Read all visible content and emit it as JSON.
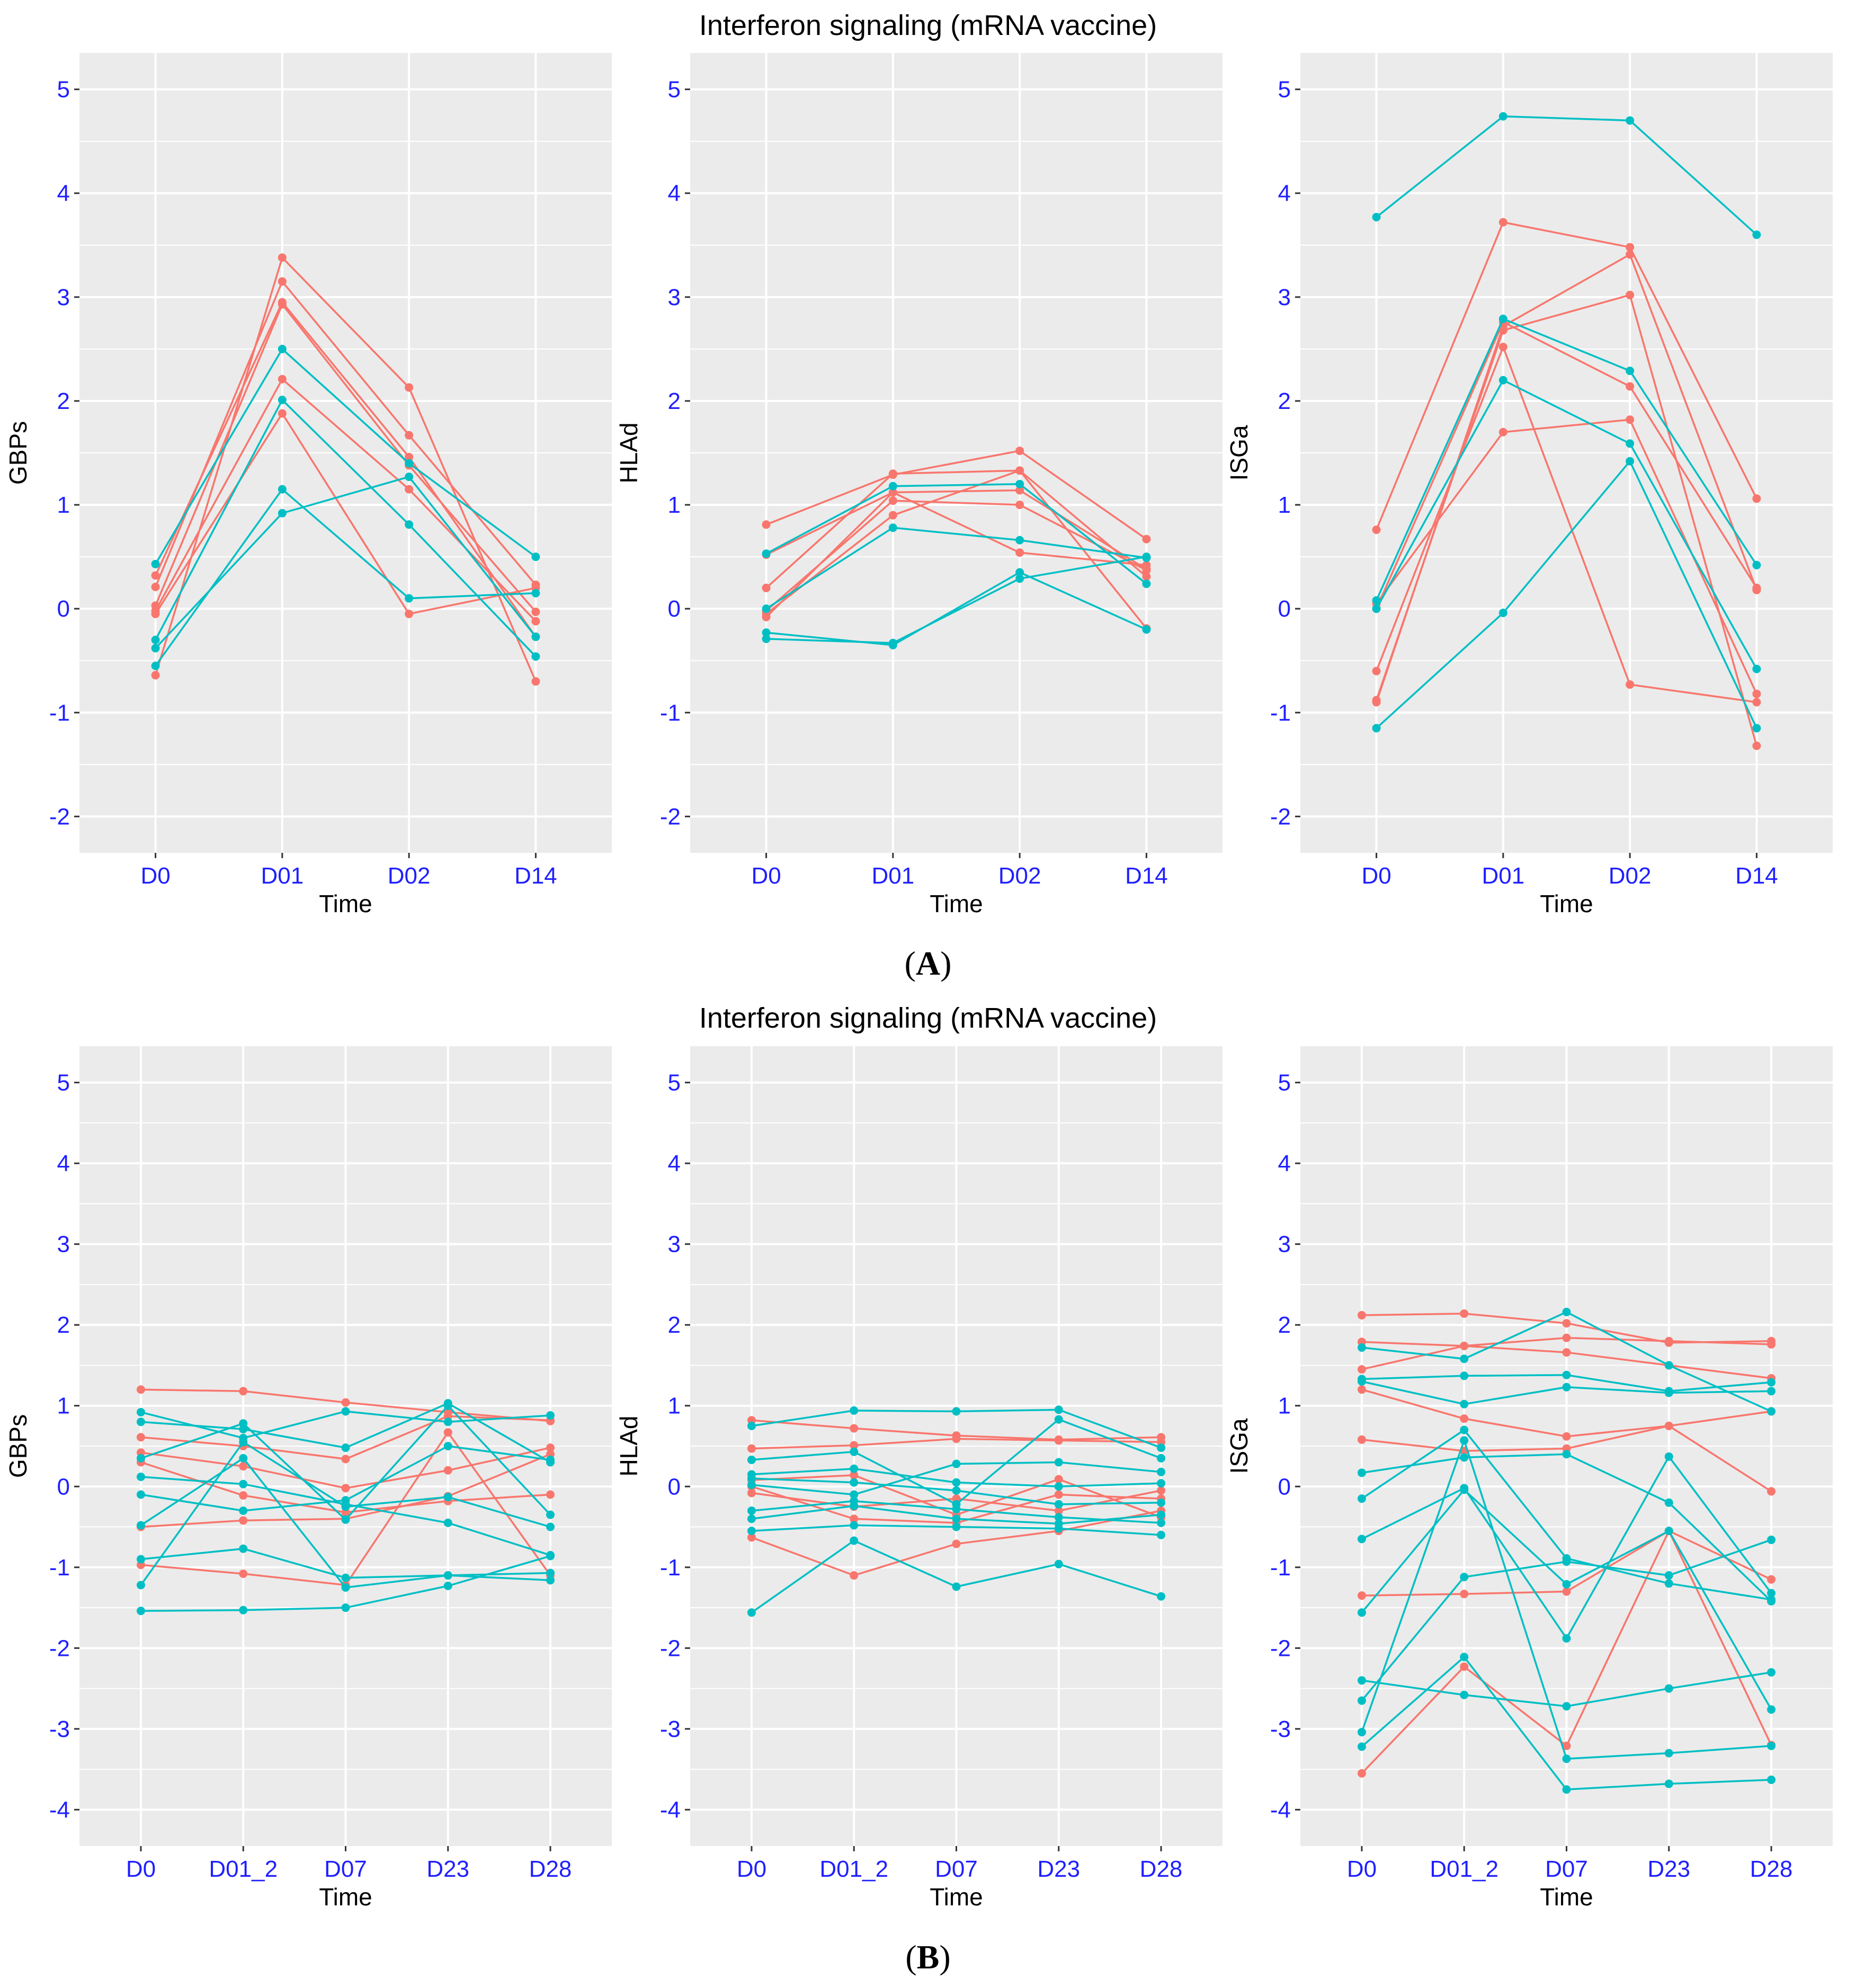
{
  "colors": {
    "group1": "#f8766d",
    "group2": "#00bfc4",
    "tick_label": "#1f1fff"
  },
  "panels": [
    {
      "title": "Interferon signaling (mRNA vaccine)",
      "label_open": "(",
      "label_letter": "A",
      "label_close": ")",
      "chart_data": [
        {
          "type": "line",
          "ylabel": "GBPs",
          "xlabel": "Time",
          "categories": [
            "D0",
            "D01",
            "D02",
            "D14"
          ],
          "ylim": [
            -2.35,
            5.35
          ],
          "yticks": [
            -2,
            -1,
            0,
            1,
            2,
            3,
            4,
            5
          ],
          "series": [
            {
              "group": "group1",
              "values": [
                -0.64,
                3.38,
                2.13,
                -0.7
              ]
            },
            {
              "group": "group1",
              "values": [
                0.21,
                3.15,
                1.67,
                0.23
              ]
            },
            {
              "group": "group1",
              "values": [
                0.32,
                2.95,
                1.46,
                -0.27
              ]
            },
            {
              "group": "group1",
              "values": [
                0.03,
                2.93,
                1.38,
                -0.03
              ]
            },
            {
              "group": "group1",
              "values": [
                -0.02,
                2.21,
                1.15,
                -0.12
              ]
            },
            {
              "group": "group1",
              "values": [
                -0.05,
                1.88,
                -0.05,
                0.2
              ]
            },
            {
              "group": "group2",
              "values": [
                0.43,
                2.5,
                1.4,
                0.5
              ]
            },
            {
              "group": "group2",
              "values": [
                -0.3,
                2.01,
                0.81,
                -0.46
              ]
            },
            {
              "group": "group2",
              "values": [
                -0.55,
                1.15,
                0.1,
                0.15
              ]
            },
            {
              "group": "group2",
              "values": [
                -0.38,
                0.92,
                1.27,
                -0.27
              ]
            }
          ]
        },
        {
          "type": "line",
          "ylabel": "HLAd",
          "xlabel": "Time",
          "categories": [
            "D0",
            "D01",
            "D02",
            "D14"
          ],
          "ylim": [
            -2.35,
            5.35
          ],
          "yticks": [
            -2,
            -1,
            0,
            1,
            2,
            3,
            4,
            5
          ],
          "series": [
            {
              "group": "group1",
              "values": [
                0.81,
                1.29,
                1.52,
                0.67
              ]
            },
            {
              "group": "group1",
              "values": [
                0.2,
                1.3,
                1.33,
                -0.19
              ]
            },
            {
              "group": "group1",
              "values": [
                0.52,
                1.12,
                1.14,
                0.38
              ]
            },
            {
              "group": "group1",
              "values": [
                -0.02,
                1.04,
                1.0,
                0.37
              ]
            },
            {
              "group": "group1",
              "values": [
                -0.05,
                0.9,
                1.33,
                0.31
              ]
            },
            {
              "group": "group1",
              "values": [
                -0.08,
                1.12,
                0.54,
                0.42
              ]
            },
            {
              "group": "group2",
              "values": [
                0.53,
                1.18,
                1.2,
                0.24
              ]
            },
            {
              "group": "group2",
              "values": [
                0.0,
                0.78,
                0.66,
                0.49
              ]
            },
            {
              "group": "group2",
              "values": [
                -0.23,
                -0.35,
                0.35,
                -0.2
              ]
            },
            {
              "group": "group2",
              "values": [
                -0.29,
                -0.33,
                0.29,
                0.5
              ]
            }
          ]
        },
        {
          "type": "line",
          "ylabel": "ISGa",
          "xlabel": "Time",
          "categories": [
            "D0",
            "D01",
            "D02",
            "D14"
          ],
          "ylim": [
            -2.35,
            5.35
          ],
          "yticks": [
            -2,
            -1,
            0,
            1,
            2,
            3,
            4,
            5
          ],
          "series": [
            {
              "group": "group1",
              "values": [
                0.76,
                3.72,
                3.48,
                1.06
              ]
            },
            {
              "group": "group1",
              "values": [
                -0.9,
                2.72,
                3.41,
                0.18
              ]
            },
            {
              "group": "group1",
              "values": [
                -0.6,
                2.52,
                -0.73,
                -0.9
              ]
            },
            {
              "group": "group1",
              "values": [
                -0.88,
                2.68,
                3.02,
                -1.32
              ]
            },
            {
              "group": "group1",
              "values": [
                0.05,
                1.7,
                1.82,
                -0.82
              ]
            },
            {
              "group": "group1",
              "values": [
                0.0,
                2.76,
                2.14,
                0.2
              ]
            },
            {
              "group": "group2",
              "values": [
                3.77,
                4.74,
                4.7,
                3.6
              ]
            },
            {
              "group": "group2",
              "values": [
                0.08,
                2.79,
                2.29,
                0.42
              ]
            },
            {
              "group": "group2",
              "values": [
                0.0,
                2.2,
                1.59,
                -0.58
              ]
            },
            {
              "group": "group2",
              "values": [
                -1.15,
                -0.04,
                1.42,
                -1.15
              ]
            }
          ]
        }
      ]
    },
    {
      "title": "Interferon signaling (mRNA vaccine)",
      "label_open": "(",
      "label_letter": "B",
      "label_close": ")",
      "chart_data": [
        {
          "type": "line",
          "ylabel": "GBPs",
          "xlabel": "Time",
          "categories": [
            "D0",
            "D01_2",
            "D07",
            "D23",
            "D28"
          ],
          "ylim": [
            -4.45,
            5.45
          ],
          "yticks": [
            -4,
            -3,
            -2,
            -1,
            0,
            1,
            2,
            3,
            4,
            5
          ],
          "series": [
            {
              "group": "group1",
              "values": [
                1.2,
                1.18,
                1.04,
                0.92,
                0.81
              ]
            },
            {
              "group": "group1",
              "values": [
                0.61,
                0.5,
                0.34,
                0.87,
                0.82
              ]
            },
            {
              "group": "group1",
              "values": [
                0.42,
                0.25,
                -0.02,
                0.2,
                0.48
              ]
            },
            {
              "group": "group1",
              "values": [
                0.3,
                -0.11,
                -0.32,
                -0.18,
                -0.1
              ]
            },
            {
              "group": "group1",
              "values": [
                -0.5,
                -0.42,
                -0.4,
                -0.12,
                0.4
              ]
            },
            {
              "group": "group1",
              "values": [
                -0.97,
                -1.08,
                -1.22,
                0.67,
                -1.1
              ]
            },
            {
              "group": "group2",
              "values": [
                0.92,
                0.6,
                0.93,
                0.8,
                0.88
              ]
            },
            {
              "group": "group2",
              "values": [
                0.8,
                0.71,
                0.48,
                1.03,
                0.3
              ]
            },
            {
              "group": "group2",
              "values": [
                0.35,
                0.78,
                -0.41,
                1.0,
                -0.35
              ]
            },
            {
              "group": "group2",
              "values": [
                0.12,
                0.03,
                -0.22,
                -0.45,
                -0.85
              ]
            },
            {
              "group": "group2",
              "values": [
                -0.1,
                -0.3,
                -0.17,
                0.5,
                0.33
              ]
            },
            {
              "group": "group2",
              "values": [
                -0.48,
                0.35,
                -1.25,
                -1.1,
                -1.07
              ]
            },
            {
              "group": "group2",
              "values": [
                -0.9,
                -0.77,
                -1.13,
                -1.1,
                -1.16
              ]
            },
            {
              "group": "group2",
              "values": [
                -1.22,
                0.55,
                -0.25,
                -0.13,
                -0.5
              ]
            },
            {
              "group": "group2",
              "values": [
                -1.54,
                -1.53,
                -1.5,
                -1.23,
                -0.86
              ]
            }
          ]
        },
        {
          "type": "line",
          "ylabel": "HLAd",
          "xlabel": "Time",
          "categories": [
            "D0",
            "D01_2",
            "D07",
            "D23",
            "D28"
          ],
          "ylim": [
            -4.45,
            5.45
          ],
          "yticks": [
            -4,
            -3,
            -2,
            -1,
            0,
            1,
            2,
            3,
            4,
            5
          ],
          "series": [
            {
              "group": "group1",
              "values": [
                0.82,
                0.72,
                0.63,
                0.58,
                0.61
              ]
            },
            {
              "group": "group1",
              "values": [
                0.47,
                0.51,
                0.59,
                0.57,
                0.55
              ]
            },
            {
              "group": "group1",
              "values": [
                0.08,
                0.14,
                -0.35,
                0.09,
                -0.38
              ]
            },
            {
              "group": "group1",
              "values": [
                0.0,
                -0.4,
                -0.45,
                -0.1,
                -0.15
              ]
            },
            {
              "group": "group1",
              "values": [
                -0.08,
                -0.25,
                -0.15,
                -0.3,
                -0.05
              ]
            },
            {
              "group": "group1",
              "values": [
                -0.63,
                -1.1,
                -0.71,
                -0.55,
                -0.3
              ]
            },
            {
              "group": "group2",
              "values": [
                0.75,
                0.94,
                0.93,
                0.95,
                0.48
              ]
            },
            {
              "group": "group2",
              "values": [
                0.33,
                0.43,
                -0.22,
                0.83,
                0.35
              ]
            },
            {
              "group": "group2",
              "values": [
                0.15,
                0.22,
                0.05,
                0.0,
                0.04
              ]
            },
            {
              "group": "group2",
              "values": [
                0.1,
                0.05,
                -0.05,
                -0.22,
                -0.2
              ]
            },
            {
              "group": "group2",
              "values": [
                0.02,
                -0.1,
                0.28,
                0.3,
                0.18
              ]
            },
            {
              "group": "group2",
              "values": [
                -0.3,
                -0.18,
                -0.28,
                -0.38,
                -0.45
              ]
            },
            {
              "group": "group2",
              "values": [
                -0.4,
                -0.24,
                -0.4,
                -0.46,
                -0.35
              ]
            },
            {
              "group": "group2",
              "values": [
                -0.55,
                -0.48,
                -0.5,
                -0.52,
                -0.6
              ]
            },
            {
              "group": "group2",
              "values": [
                -1.56,
                -0.67,
                -1.24,
                -0.96,
                -1.36
              ]
            }
          ]
        },
        {
          "type": "line",
          "ylabel": "ISGa",
          "xlabel": "Time",
          "categories": [
            "D0",
            "D01_2",
            "D07",
            "D23",
            "D28"
          ],
          "ylim": [
            -4.45,
            5.45
          ],
          "yticks": [
            -4,
            -3,
            -2,
            -1,
            0,
            1,
            2,
            3,
            4,
            5
          ],
          "series": [
            {
              "group": "group1",
              "values": [
                2.12,
                2.14,
                2.02,
                1.78,
                1.8
              ]
            },
            {
              "group": "group1",
              "values": [
                1.79,
                1.74,
                1.84,
                1.8,
                1.76
              ]
            },
            {
              "group": "group1",
              "values": [
                1.45,
                1.74,
                1.66,
                1.5,
                1.34
              ]
            },
            {
              "group": "group1",
              "values": [
                1.2,
                0.84,
                0.62,
                0.75,
                0.93
              ]
            },
            {
              "group": "group1",
              "values": [
                0.58,
                0.44,
                0.47,
                0.75,
                -0.06
              ]
            },
            {
              "group": "group1",
              "values": [
                -1.35,
                -1.33,
                -1.3,
                -0.55,
                -1.15
              ]
            },
            {
              "group": "group1",
              "values": [
                -3.55,
                -2.23,
                -3.21,
                -0.55,
                -3.2
              ]
            },
            {
              "group": "group2",
              "values": [
                1.72,
                1.58,
                2.16,
                1.5,
                0.93
              ]
            },
            {
              "group": "group2",
              "values": [
                1.33,
                1.37,
                1.38,
                1.18,
                1.29
              ]
            },
            {
              "group": "group2",
              "values": [
                1.3,
                1.02,
                1.23,
                1.16,
                1.18
              ]
            },
            {
              "group": "group2",
              "values": [
                0.17,
                0.36,
                0.4,
                -0.2,
                -1.42
              ]
            },
            {
              "group": "group2",
              "values": [
                -0.15,
                0.7,
                -0.89,
                -1.2,
                -1.4
              ]
            },
            {
              "group": "group2",
              "values": [
                -0.65,
                -0.02,
                -1.88,
                0.37,
                -1.32
              ]
            },
            {
              "group": "group2",
              "values": [
                -1.56,
                -0.04,
                -1.21,
                -0.55,
                -2.76
              ]
            },
            {
              "group": "group2",
              "values": [
                -2.4,
                -2.58,
                -2.72,
                -2.5,
                -2.3
              ]
            },
            {
              "group": "group2",
              "values": [
                -2.65,
                -1.12,
                -0.93,
                -1.1,
                -0.66
              ]
            },
            {
              "group": "group2",
              "values": [
                -3.04,
                0.57,
                -3.37,
                -3.3,
                -3.21
              ]
            },
            {
              "group": "group2",
              "values": [
                -3.22,
                -2.11,
                -3.75,
                -3.68,
                -3.63
              ]
            }
          ]
        }
      ]
    }
  ]
}
